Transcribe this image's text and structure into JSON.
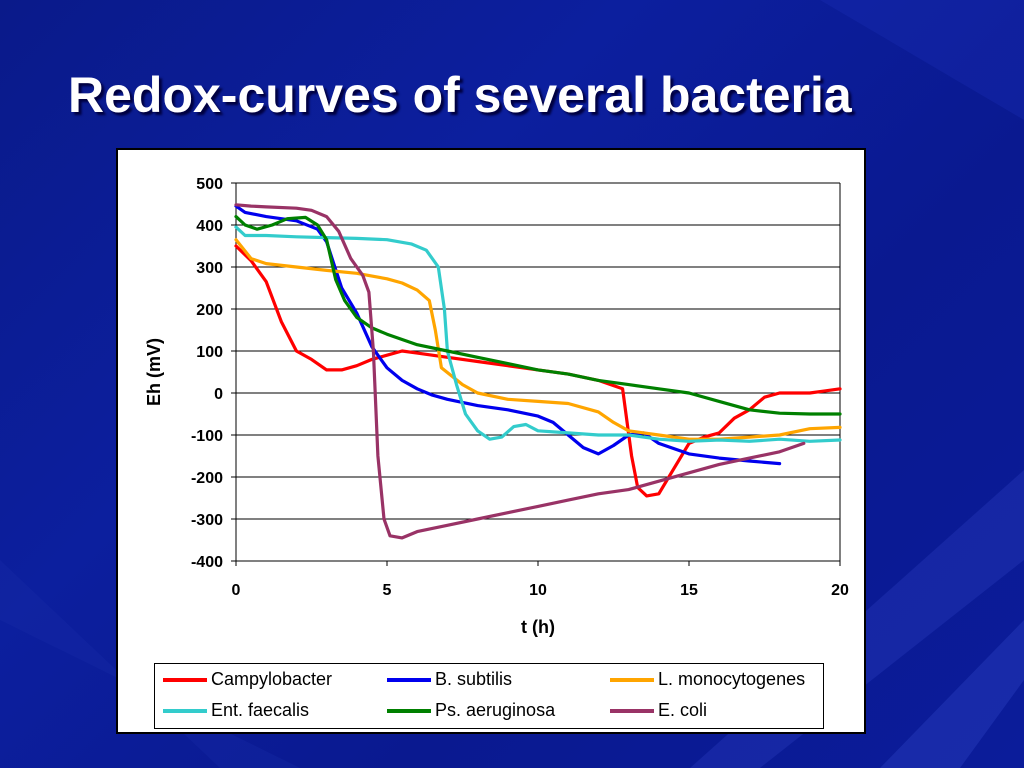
{
  "slide": {
    "title": "Redox-curves of several bacteria"
  },
  "chart_data": {
    "type": "line",
    "xlabel": "t (h)",
    "ylabel": "Eh (mV)",
    "xlim": [
      0,
      20
    ],
    "ylim": [
      -400,
      500
    ],
    "xticks": [
      "0",
      "5",
      "10",
      "15",
      "20"
    ],
    "yticks": [
      "500",
      "400",
      "300",
      "200",
      "100",
      "0",
      "-100",
      "-200",
      "-300",
      "-400"
    ],
    "grid": "horizontal",
    "legend_position": "bottom",
    "series": [
      {
        "name": "Campylobacter",
        "color": "#ff0000",
        "points": [
          [
            0,
            350
          ],
          [
            0.5,
            315
          ],
          [
            1,
            265
          ],
          [
            1.5,
            170
          ],
          [
            2,
            100
          ],
          [
            2.5,
            80
          ],
          [
            3,
            55
          ],
          [
            3.5,
            55
          ],
          [
            4,
            65
          ],
          [
            4.5,
            80
          ],
          [
            5,
            90
          ],
          [
            5.5,
            100
          ],
          [
            6,
            95
          ],
          [
            7,
            85
          ],
          [
            8,
            75
          ],
          [
            9,
            65
          ],
          [
            10,
            55
          ],
          [
            11,
            45
          ],
          [
            12,
            30
          ],
          [
            12.8,
            10
          ],
          [
            13.1,
            -150
          ],
          [
            13.3,
            -225
          ],
          [
            13.6,
            -245
          ],
          [
            14,
            -240
          ],
          [
            14.5,
            -180
          ],
          [
            15,
            -120
          ],
          [
            15.5,
            -105
          ],
          [
            16,
            -95
          ],
          [
            16.5,
            -60
          ],
          [
            17,
            -40
          ],
          [
            17.5,
            -10
          ],
          [
            18,
            0
          ],
          [
            18.5,
            0
          ],
          [
            19,
            0
          ],
          [
            19.5,
            5
          ],
          [
            20,
            10
          ]
        ]
      },
      {
        "name": "B. subtilis",
        "color": "#0000ee",
        "points": [
          [
            0,
            445
          ],
          [
            0.3,
            430
          ],
          [
            1,
            420
          ],
          [
            2,
            410
          ],
          [
            2.7,
            390
          ],
          [
            3,
            360
          ],
          [
            3.5,
            250
          ],
          [
            4,
            190
          ],
          [
            4.5,
            110
          ],
          [
            5,
            60
          ],
          [
            5.5,
            30
          ],
          [
            6,
            10
          ],
          [
            6.5,
            -5
          ],
          [
            7,
            -15
          ],
          [
            8,
            -30
          ],
          [
            9,
            -40
          ],
          [
            10,
            -55
          ],
          [
            10.5,
            -70
          ],
          [
            11,
            -100
          ],
          [
            11.5,
            -130
          ],
          [
            12,
            -145
          ],
          [
            12.5,
            -125
          ],
          [
            13,
            -100
          ],
          [
            13.5,
            -95
          ],
          [
            14,
            -120
          ],
          [
            15,
            -145
          ],
          [
            16,
            -155
          ],
          [
            17,
            -162
          ],
          [
            18,
            -168
          ]
        ]
      },
      {
        "name": "L. monocytogenes",
        "color": "#ffa500",
        "points": [
          [
            0,
            365
          ],
          [
            0.5,
            320
          ],
          [
            1,
            308
          ],
          [
            2,
            300
          ],
          [
            3,
            292
          ],
          [
            4,
            285
          ],
          [
            5,
            272
          ],
          [
            5.5,
            262
          ],
          [
            6,
            245
          ],
          [
            6.4,
            220
          ],
          [
            6.6,
            150
          ],
          [
            6.8,
            60
          ],
          [
            7.5,
            20
          ],
          [
            8,
            0
          ],
          [
            9,
            -15
          ],
          [
            10,
            -20
          ],
          [
            11,
            -25
          ],
          [
            12,
            -45
          ],
          [
            12.5,
            -70
          ],
          [
            13,
            -90
          ],
          [
            14,
            -100
          ],
          [
            15,
            -110
          ],
          [
            16,
            -110
          ],
          [
            17,
            -105
          ],
          [
            18,
            -100
          ],
          [
            19,
            -85
          ],
          [
            20,
            -82
          ]
        ]
      },
      {
        "name": "Ent. faecalis",
        "color": "#33cccc",
        "points": [
          [
            0,
            395
          ],
          [
            0.3,
            375
          ],
          [
            1,
            375
          ],
          [
            2,
            372
          ],
          [
            3,
            370
          ],
          [
            4,
            368
          ],
          [
            5,
            365
          ],
          [
            5.8,
            355
          ],
          [
            6.3,
            340
          ],
          [
            6.7,
            300
          ],
          [
            6.9,
            200
          ],
          [
            7,
            100
          ],
          [
            7.3,
            20
          ],
          [
            7.6,
            -50
          ],
          [
            8,
            -90
          ],
          [
            8.4,
            -110
          ],
          [
            8.8,
            -105
          ],
          [
            9.2,
            -80
          ],
          [
            9.6,
            -75
          ],
          [
            10,
            -90
          ],
          [
            11,
            -95
          ],
          [
            12,
            -100
          ],
          [
            13,
            -100
          ],
          [
            14,
            -110
          ],
          [
            15,
            -115
          ],
          [
            16,
            -112
          ],
          [
            17,
            -115
          ],
          [
            18,
            -110
          ],
          [
            19,
            -115
          ],
          [
            20,
            -112
          ]
        ]
      },
      {
        "name": "Ps. aeruginosa",
        "color": "#008000",
        "points": [
          [
            0,
            420
          ],
          [
            0.3,
            400
          ],
          [
            0.7,
            390
          ],
          [
            1.2,
            400
          ],
          [
            1.7,
            415
          ],
          [
            2.3,
            418
          ],
          [
            2.7,
            400
          ],
          [
            3,
            365
          ],
          [
            3.3,
            270
          ],
          [
            3.6,
            220
          ],
          [
            4,
            180
          ],
          [
            4.5,
            155
          ],
          [
            5,
            140
          ],
          [
            6,
            115
          ],
          [
            7,
            100
          ],
          [
            8,
            85
          ],
          [
            9,
            70
          ],
          [
            10,
            55
          ],
          [
            11,
            45
          ],
          [
            12,
            30
          ],
          [
            13,
            20
          ],
          [
            14,
            10
          ],
          [
            15,
            0
          ],
          [
            16,
            -20
          ],
          [
            17,
            -40
          ],
          [
            18,
            -48
          ],
          [
            19,
            -50
          ],
          [
            20,
            -50
          ]
        ]
      },
      {
        "name": "E. coli",
        "color": "#993366",
        "points": [
          [
            0,
            448
          ],
          [
            0.5,
            445
          ],
          [
            1,
            443
          ],
          [
            2,
            440
          ],
          [
            2.5,
            435
          ],
          [
            3,
            420
          ],
          [
            3.4,
            385
          ],
          [
            3.8,
            320
          ],
          [
            4.2,
            280
          ],
          [
            4.4,
            240
          ],
          [
            4.55,
            100
          ],
          [
            4.7,
            -150
          ],
          [
            4.9,
            -300
          ],
          [
            5.1,
            -340
          ],
          [
            5.5,
            -345
          ],
          [
            6,
            -330
          ],
          [
            7,
            -315
          ],
          [
            8,
            -300
          ],
          [
            9,
            -285
          ],
          [
            10,
            -270
          ],
          [
            11,
            -255
          ],
          [
            12,
            -240
          ],
          [
            13,
            -230
          ],
          [
            14,
            -210
          ],
          [
            15,
            -190
          ],
          [
            16,
            -170
          ],
          [
            17,
            -155
          ],
          [
            18,
            -140
          ],
          [
            18.8,
            -120
          ]
        ]
      }
    ]
  }
}
